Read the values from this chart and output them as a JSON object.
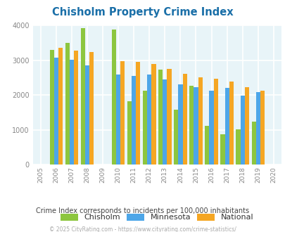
{
  "title": "Chisholm Property Crime Index",
  "years": [
    2005,
    2006,
    2007,
    2008,
    2009,
    2010,
    2011,
    2012,
    2013,
    2014,
    2015,
    2016,
    2017,
    2018,
    2019,
    2020
  ],
  "chisholm": [
    null,
    3300,
    3500,
    3920,
    null,
    3880,
    1830,
    2120,
    2740,
    1580,
    2270,
    1120,
    870,
    1010,
    1240,
    null
  ],
  "minnesota": [
    null,
    3080,
    3020,
    2860,
    null,
    2590,
    2560,
    2600,
    2460,
    2310,
    2220,
    2130,
    2200,
    1990,
    2090,
    null
  ],
  "national": [
    null,
    3360,
    3280,
    3240,
    null,
    2970,
    2960,
    2890,
    2760,
    2610,
    2510,
    2470,
    2400,
    2220,
    2120,
    null
  ],
  "chisholm_color": "#8dc63f",
  "minnesota_color": "#4da6e8",
  "national_color": "#f5a623",
  "bg_color": "#e8f4f8",
  "ylim": [
    0,
    4000
  ],
  "yticks": [
    0,
    1000,
    2000,
    3000,
    4000
  ],
  "bar_width": 0.28,
  "legend_labels": [
    "Chisholm",
    "Minnesota",
    "National"
  ],
  "subtitle": "Crime Index corresponds to incidents per 100,000 inhabitants",
  "footer": "© 2025 CityRating.com - https://www.cityrating.com/crime-statistics/",
  "title_color": "#1a6fa8",
  "subtitle_color": "#444444",
  "footer_color": "#aaaaaa",
  "grid_color": "#ffffff",
  "axis_color": "#888888"
}
